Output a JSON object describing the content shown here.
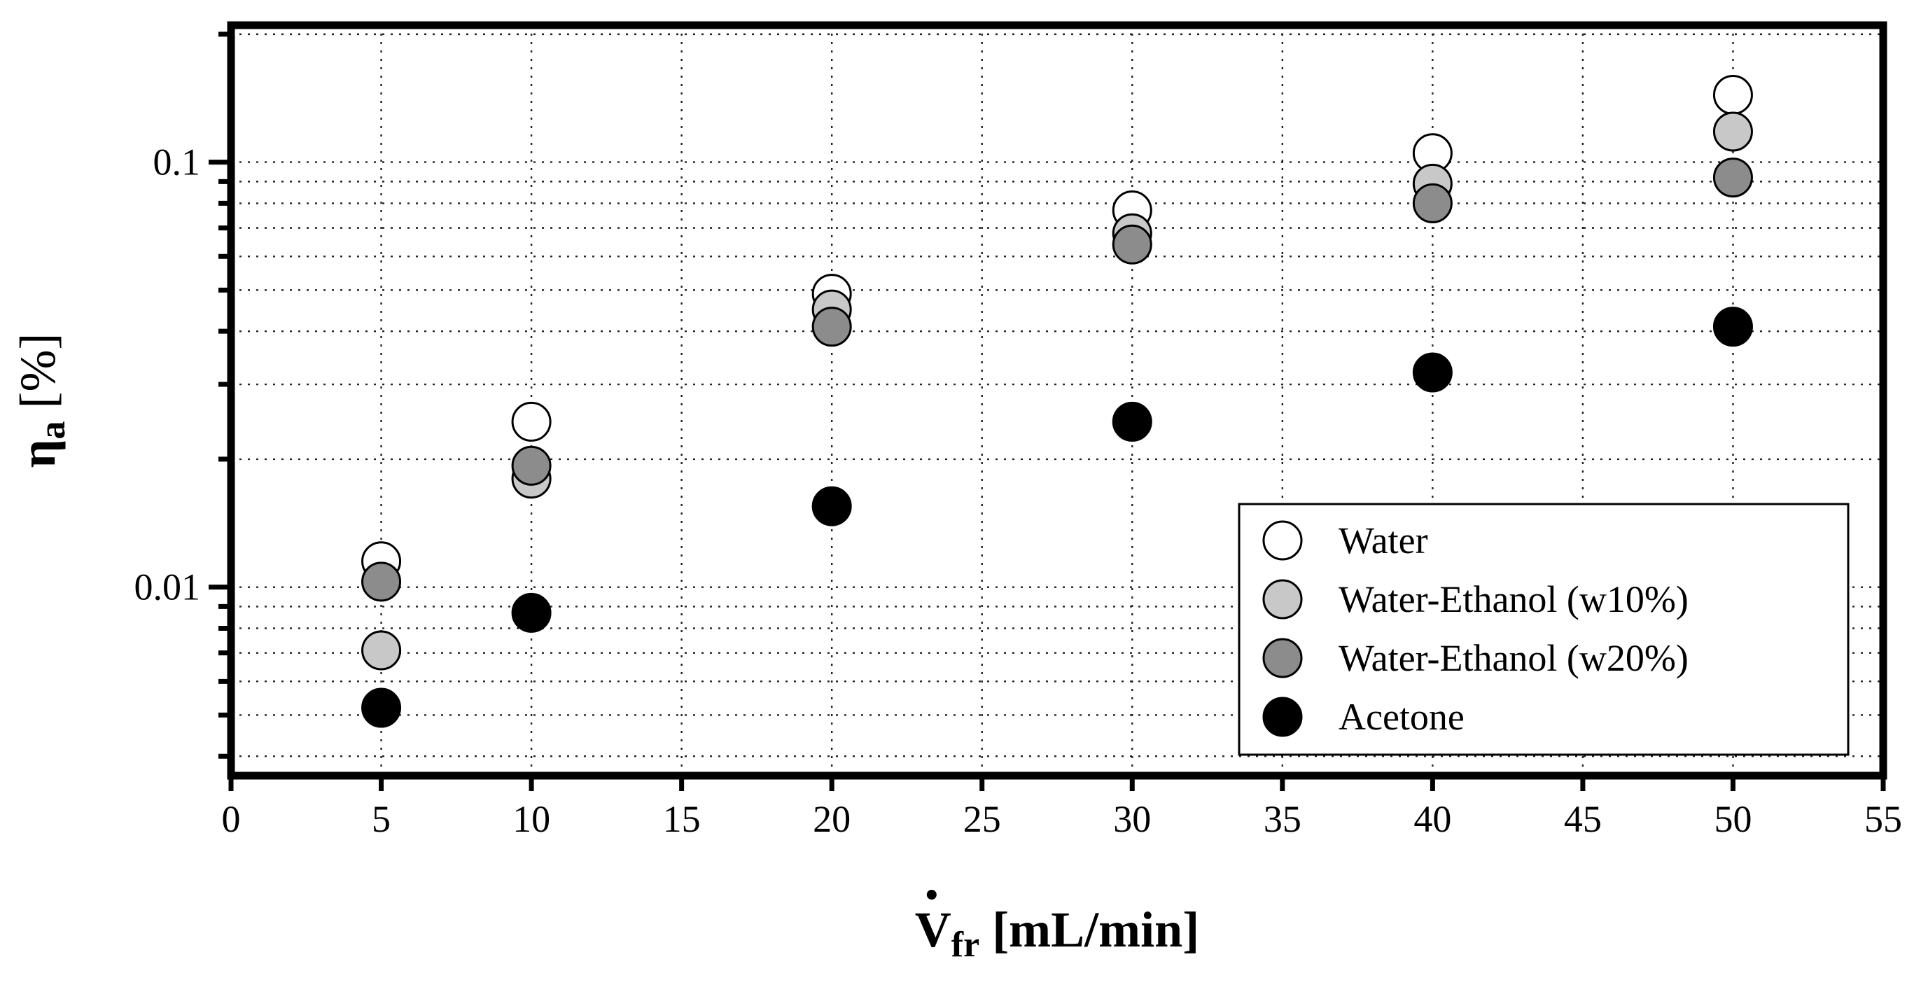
{
  "chart_data": {
    "type": "scatter",
    "title": "",
    "xlabel": "V̇fr [mL/min]",
    "xlabel_parts": {
      "symbol": "V",
      "subscript": "fr",
      "unit": " [mL/min]"
    },
    "ylabel": "ηa [%]",
    "ylabel_parts": {
      "symbol": "η",
      "subscript": "a",
      "unit": " [%]"
    },
    "x_scale": "linear",
    "y_scale": "log",
    "xlim": [
      0,
      55
    ],
    "ylim": [
      0.0036,
      0.21
    ],
    "x_ticks": [
      0,
      5,
      10,
      15,
      20,
      25,
      30,
      35,
      40,
      45,
      50,
      55
    ],
    "x_tick_labels": [
      "0",
      "5",
      "10",
      "15",
      "20",
      "25",
      "30",
      "35",
      "40",
      "45",
      "50",
      "55"
    ],
    "y_major_ticks": [
      0.01,
      0.1
    ],
    "y_tick_labels": [
      "0.01",
      "0.1"
    ],
    "y_minor_ticks": [
      0.004,
      0.005,
      0.006,
      0.007,
      0.008,
      0.009,
      0.02,
      0.03,
      0.04,
      0.05,
      0.06,
      0.07,
      0.08,
      0.09,
      0.2
    ],
    "grid": true,
    "legend_position": "lower-right",
    "series": [
      {
        "name": "Water",
        "color": "#ffffff",
        "x": [
          5,
          10,
          20,
          30,
          40,
          50
        ],
        "y": [
          0.0115,
          0.0245,
          0.049,
          0.077,
          0.105,
          0.144
        ]
      },
      {
        "name": "Water-Ethanol (w10%)",
        "color": "#c8c8c8",
        "x": [
          5,
          10,
          20,
          30,
          40,
          50
        ],
        "y": [
          0.0071,
          0.018,
          0.045,
          0.068,
          0.089,
          0.118
        ]
      },
      {
        "name": "Water-Ethanol (w20%)",
        "color": "#8c8c8c",
        "x": [
          5,
          10,
          20,
          30,
          40,
          50
        ],
        "y": [
          0.0103,
          0.0193,
          0.041,
          0.064,
          0.08,
          0.092
        ]
      },
      {
        "name": "Acetone",
        "color": "#000000",
        "x": [
          5,
          10,
          20,
          30,
          40,
          50
        ],
        "y": [
          0.0052,
          0.0087,
          0.0155,
          0.0245,
          0.032,
          0.041
        ]
      }
    ]
  }
}
